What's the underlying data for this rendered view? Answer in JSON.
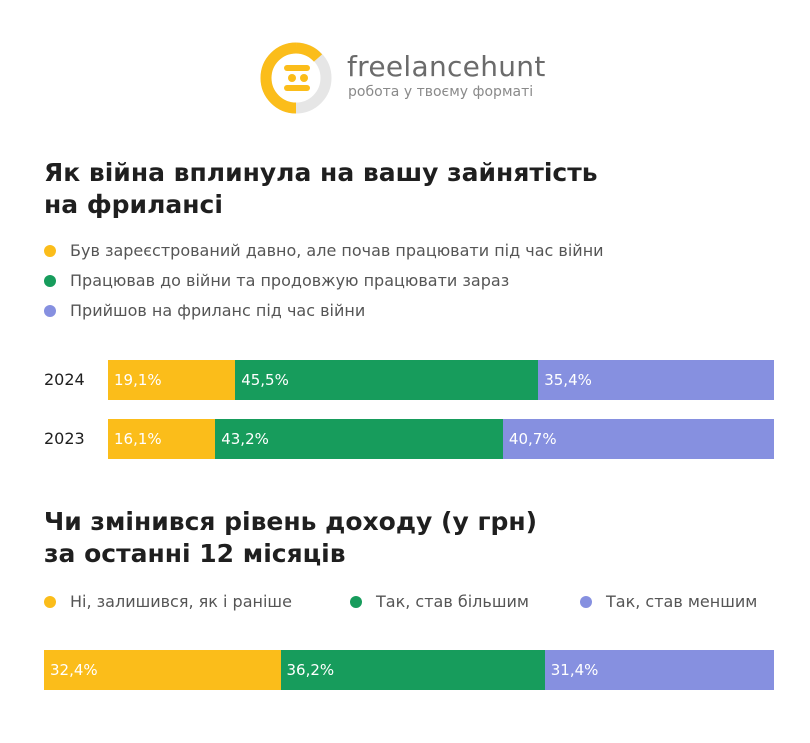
{
  "brand": {
    "name": "freelancehunt",
    "tagline": "робота у твоєму форматі"
  },
  "colors": {
    "yellow": "#fbbd1a",
    "green": "#179c5c",
    "purple": "#8690e0"
  },
  "chart_data": [
    {
      "type": "bar",
      "orientation": "horizontal",
      "stacked": "percent",
      "title_lines": [
        "Як війна вплинула на вашу зайнятість",
        "на фрилансі"
      ],
      "legend_position": "top",
      "categories": [
        "2024",
        "2023"
      ],
      "series": [
        {
          "name": "Був зареєстрований давно, але почав працювати під час війни",
          "values": [
            19.1,
            16.1
          ],
          "labels": [
            "19,1%",
            "16,1%"
          ],
          "color": "#fbbd1a"
        },
        {
          "name": "Працював до війни та продовжую працювати зараз",
          "values": [
            45.5,
            43.2
          ],
          "labels": [
            "45,5%",
            "43,2%"
          ],
          "color": "#179c5c"
        },
        {
          "name": "Прийшов на фриланс під час війни",
          "values": [
            35.4,
            40.7
          ],
          "labels": [
            "35,4%",
            "40,7%"
          ],
          "color": "#8690e0"
        }
      ]
    },
    {
      "type": "bar",
      "orientation": "horizontal",
      "stacked": "percent",
      "title_lines": [
        "Чи змінився рівень доходу (у грн)",
        "за останні 12 місяців"
      ],
      "legend_position": "top",
      "categories": [
        ""
      ],
      "series": [
        {
          "name": "Ні, залишився, як і раніше",
          "values": [
            32.4
          ],
          "labels": [
            "32,4%"
          ],
          "color": "#fbbd1a"
        },
        {
          "name": "Так, став більшим",
          "values": [
            36.2
          ],
          "labels": [
            "36,2%"
          ],
          "color": "#179c5c"
        },
        {
          "name": "Так, став меншим",
          "values": [
            31.4
          ],
          "labels": [
            "31,4%"
          ],
          "color": "#8690e0"
        }
      ]
    }
  ]
}
